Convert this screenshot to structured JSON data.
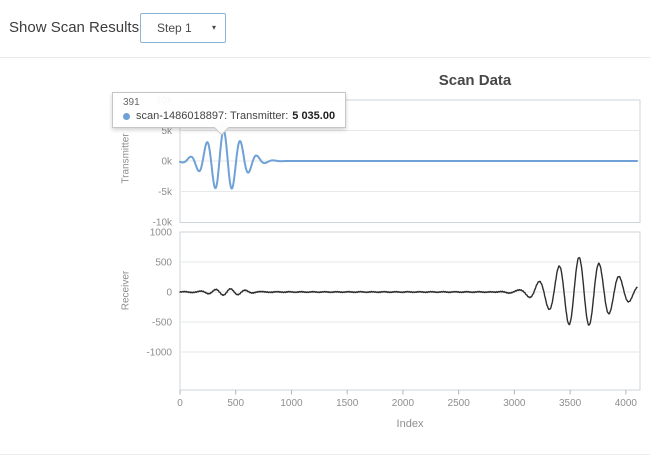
{
  "header": {
    "label": "Show Scan Results",
    "dropdown": {
      "value": "Step 1",
      "caret": "▾"
    }
  },
  "chart": {
    "title": "Scan Data",
    "xlabel": "Index",
    "x_tick_labels": [
      "0",
      "500",
      "1000",
      "1500",
      "2000",
      "2500",
      "3000",
      "3500",
      "4000"
    ],
    "x_tick_values": [
      0,
      500,
      1000,
      1500,
      2000,
      2500,
      3000,
      3500,
      4000
    ]
  },
  "tooltip": {
    "x_label": "391",
    "series": "scan-1486018897",
    "field": "Transmitter",
    "text_prefix": "scan-1486018897: Transmitter:",
    "value": "5 035.00",
    "dot_color": "#6fa1d6"
  },
  "chart_data": [
    {
      "type": "line",
      "name": "scan-1486018897",
      "ylabel": "Transmitter",
      "xlabel": "Index",
      "line_color": "#6fa1d6",
      "xlim": [
        0,
        4100
      ],
      "ylim": [
        -10000,
        10000
      ],
      "grid": true,
      "ytick_labels": [
        "10k",
        "5k",
        "0k",
        "-5k",
        "-10k"
      ],
      "ytick_values": [
        10000,
        5000,
        0,
        -5000,
        -10000
      ],
      "highlighted_point": {
        "x": 391,
        "y": 5035
      },
      "synth_components": [
        {
          "kind": "gabor",
          "amp": 5035,
          "center": 391,
          "sigma_rise": 150,
          "sigma_fall": 160,
          "period": 150,
          "wave": "cos"
        }
      ],
      "keypoints_x": [
        0,
        91,
        166,
        241,
        316,
        391,
        466,
        541,
        616,
        691,
        800,
        1000,
        4100
      ],
      "keypoints_y": [
        0,
        774,
        -1757,
        3153,
        -4477,
        5035,
        -4477,
        3153,
        -1757,
        774,
        150,
        0,
        0
      ]
    },
    {
      "type": "line",
      "name": "scan-1486018897",
      "ylabel": "Receiver",
      "xlabel": "Index",
      "line_color": "#2e2e2e",
      "xlim": [
        0,
        4100
      ],
      "ylim": [
        -1300,
        1000
      ],
      "grid": true,
      "ytick_labels": [
        "1000",
        "500",
        "0",
        "-500",
        "-1000"
      ],
      "ytick_values": [
        1000,
        500,
        0,
        -500,
        -1000
      ],
      "synth_components": [
        {
          "kind": "gabor",
          "amp": 50,
          "center": 420,
          "sigma_rise": 170,
          "sigma_fall": 170,
          "period": 135,
          "wave": "sin"
        },
        {
          "kind": "gabor",
          "amp": 580,
          "center": 3580,
          "sigma_rise": 230,
          "sigma_fall": 280,
          "period": 180,
          "wave": "cos"
        },
        {
          "kind": "ripple",
          "amp": 6,
          "freq": 0.37
        },
        {
          "kind": "ripple",
          "amp": 4,
          "freq": 1.63
        }
      ],
      "keypoints_x": [
        250,
        420,
        600,
        3220,
        3310,
        3400,
        3490,
        3580,
        3670,
        3760,
        3850,
        3940,
        4030,
        4100
      ],
      "keypoints_y": [
        40,
        50,
        35,
        170,
        -290,
        430,
        -537,
        580,
        -551,
        470,
        -360,
        250,
        -160,
        80
      ]
    }
  ]
}
